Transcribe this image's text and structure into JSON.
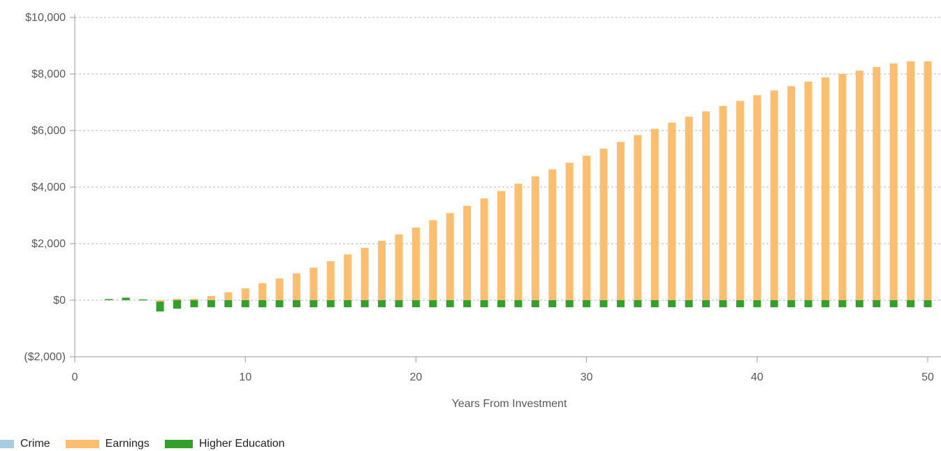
{
  "chart_data": {
    "type": "bar",
    "stacked": true,
    "xlabel": "Years From Investment",
    "ylabel": "",
    "xlim": [
      0,
      50
    ],
    "ylim": [
      -2000,
      10000
    ],
    "x_ticks": [
      0,
      10,
      20,
      30,
      40,
      50
    ],
    "y_ticks": [
      -2000,
      0,
      2000,
      4000,
      6000,
      8000,
      10000
    ],
    "y_tick_labels": [
      "($2,000)",
      "$0",
      "$2,000",
      "$4,000",
      "$6,000",
      "$8,000",
      "$10,000"
    ],
    "x_tick_labels": [
      "0",
      "10",
      "20",
      "30",
      "40",
      "50"
    ],
    "grid": "horizontal-dashed",
    "legend_position": "bottom-left",
    "colors": {
      "Crime": "#a6cee3",
      "Earnings": "#fdbf6f",
      "Higher Education": "#33a02c"
    },
    "x": [
      2,
      3,
      4,
      5,
      6,
      7,
      8,
      9,
      10,
      11,
      12,
      13,
      14,
      15,
      16,
      17,
      18,
      19,
      20,
      21,
      22,
      23,
      24,
      25,
      26,
      27,
      28,
      29,
      30,
      31,
      32,
      33,
      34,
      35,
      36,
      37,
      38,
      39,
      40,
      41,
      42,
      43,
      44,
      45,
      46,
      47,
      48,
      49,
      50
    ],
    "series": [
      {
        "name": "Crime",
        "values": [
          0,
          0,
          0,
          0,
          0,
          0,
          0,
          0,
          0,
          0,
          0,
          0,
          0,
          0,
          0,
          0,
          0,
          0,
          0,
          0,
          0,
          0,
          0,
          0,
          0,
          0,
          0,
          0,
          0,
          0,
          0,
          0,
          0,
          0,
          0,
          0,
          0,
          0,
          0,
          0,
          0,
          0,
          0,
          0,
          0,
          0,
          0,
          0,
          0
        ]
      },
      {
        "name": "Earnings",
        "values": [
          0,
          0,
          0,
          -50,
          50,
          50,
          150,
          280,
          420,
          600,
          770,
          950,
          1150,
          1380,
          1620,
          1850,
          2100,
          2330,
          2570,
          2830,
          3080,
          3340,
          3600,
          3860,
          4120,
          4380,
          4630,
          4860,
          5110,
          5360,
          5600,
          5840,
          6060,
          6280,
          6490,
          6680,
          6870,
          7050,
          7250,
          7420,
          7570,
          7730,
          7880,
          8000,
          8120,
          8250,
          8370,
          8450,
          8450
        ]
      },
      {
        "name": "Higher Education",
        "values": [
          40,
          90,
          30,
          -350,
          -300,
          -250,
          -250,
          -250,
          -250,
          -250,
          -250,
          -250,
          -250,
          -250,
          -250,
          -250,
          -250,
          -250,
          -250,
          -250,
          -250,
          -250,
          -250,
          -250,
          -250,
          -250,
          -250,
          -250,
          -250,
          -250,
          -250,
          -250,
          -250,
          -250,
          -250,
          -250,
          -250,
          -250,
          -250,
          -250,
          -250,
          -250,
          -250,
          -250,
          -250,
          -250,
          -250,
          -250,
          -250
        ]
      }
    ]
  }
}
